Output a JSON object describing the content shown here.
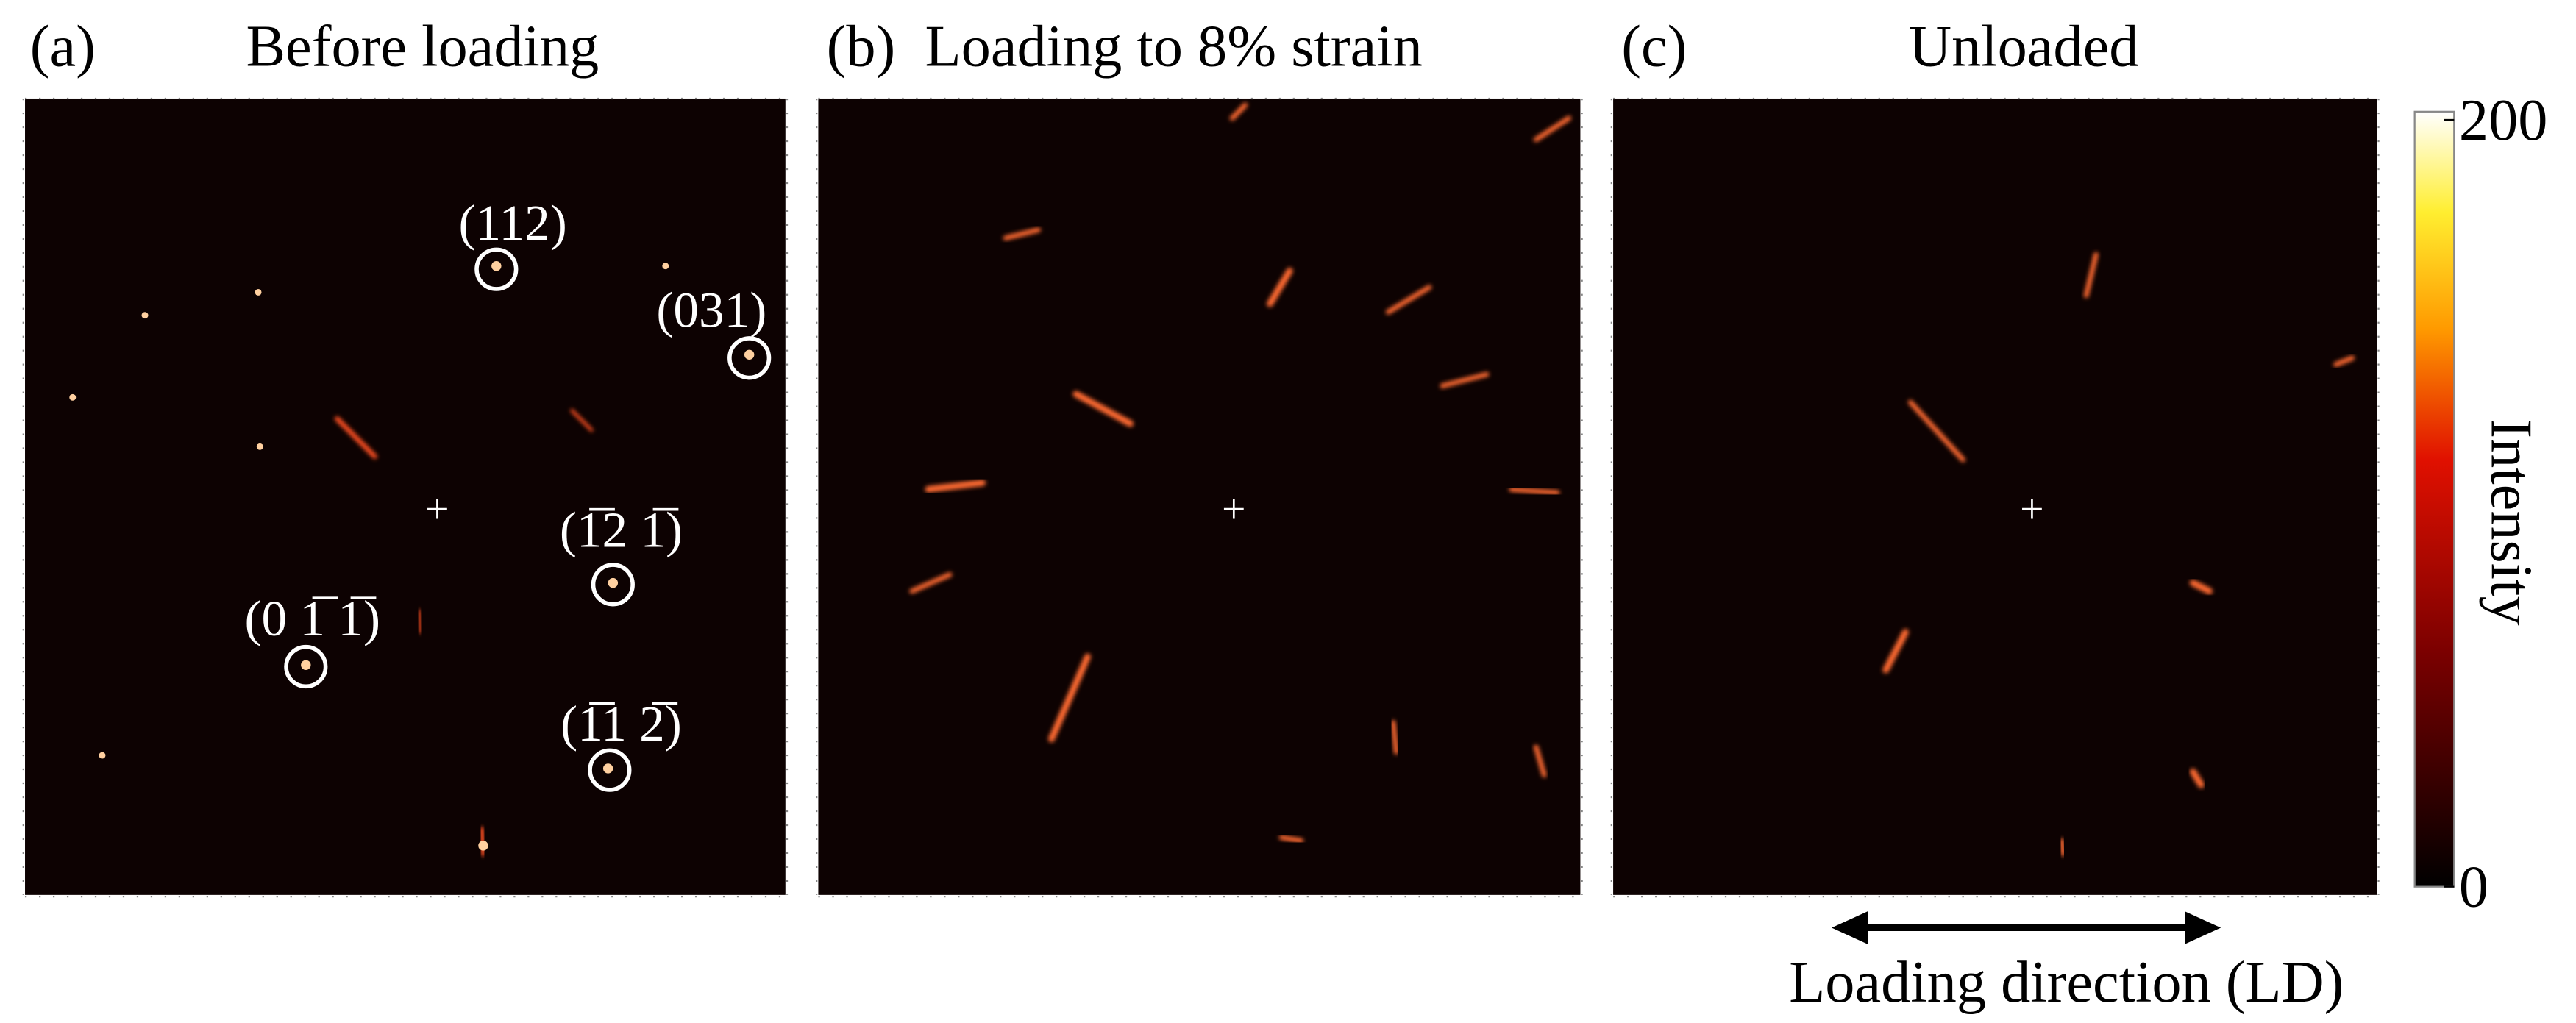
{
  "panels": [
    {
      "label": "(a)",
      "title": "Before loading",
      "spots": [
        "(112)",
        "(031)",
        "(1̅2 1̅)",
        "(0 1̅ 1̅)",
        "(1̅1 2̅)"
      ]
    },
    {
      "label": "(b)",
      "title": "Loading to 8% strain"
    },
    {
      "label": "(c)",
      "title": "Unloaded"
    }
  ],
  "colorbar": {
    "label": "Intensity",
    "lim": [
      0,
      200
    ],
    "ticks": [
      0,
      200
    ]
  },
  "annotation": "Loading direction (LD)"
}
